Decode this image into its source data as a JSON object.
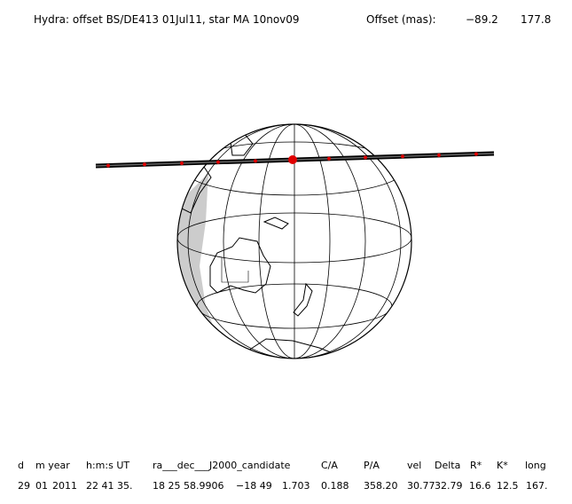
{
  "header": {
    "title": "Hydra: offset BS/DE413 01Jul11, star MA 10nov09",
    "offset_label": "Offset (mas):",
    "offset_values": [
      "−89.2",
      "177.8"
    ]
  },
  "table": {
    "columns": [
      "d",
      "m year",
      "h:m:s UT",
      "ra___dec___J2000_candidate",
      "C/A",
      "P/A",
      "vel",
      "Delta",
      "R*",
      "K*",
      "long"
    ],
    "rows": [
      [
        "29",
        "01",
        "2011",
        "22 41 35.",
        "18 25 58.9906",
        "−18 49",
        "1.703",
        "0.188",
        "358.20",
        "30.77",
        "32.79",
        "16.6",
        "12.5",
        "167."
      ]
    ]
  }
}
